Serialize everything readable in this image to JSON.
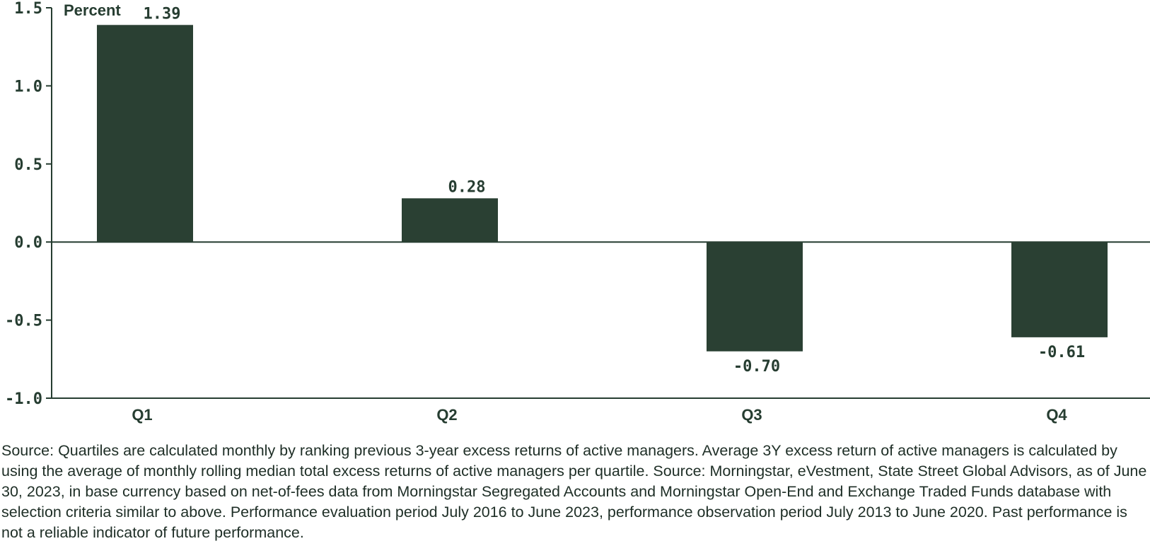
{
  "chart_data": {
    "type": "bar",
    "categories": [
      "Q1",
      "Q2",
      "Q3",
      "Q4"
    ],
    "values": [
      1.39,
      0.28,
      -0.7,
      -0.61
    ],
    "value_labels": [
      "1.39",
      "0.28",
      "-0.70",
      "-0.61"
    ],
    "unit_label": "Percent",
    "title": "",
    "xlabel": "",
    "ylabel": "",
    "ylim": [
      -1.0,
      1.5
    ],
    "yticks": [
      "1.5",
      "1.0",
      "0.5",
      "0.0",
      "-0.5",
      "-1.0"
    ],
    "grid": false,
    "legend": "none",
    "colors": {
      "bar": "#2a4033",
      "text": "#263d31",
      "axis": "#263d31"
    }
  },
  "footnote": "Source: Quartiles are calculated monthly by ranking previous 3-year excess returns of active managers. Average 3Y excess return of active managers is calculated by using the average of monthly rolling median total excess returns of active managers per quartile. Source: Morningstar, eVestment, State Street Global Advisors, as of June 30, 2023, in base currency based on net-of-fees data from Morningstar Segregated Accounts and Morningstar Open-End and Exchange Traded Funds database with selection criteria similar to above. Performance evaluation period July 2016 to June 2023, performance observation period July 2013 to June 2020. Past performance is not a reliable indicator of future performance."
}
